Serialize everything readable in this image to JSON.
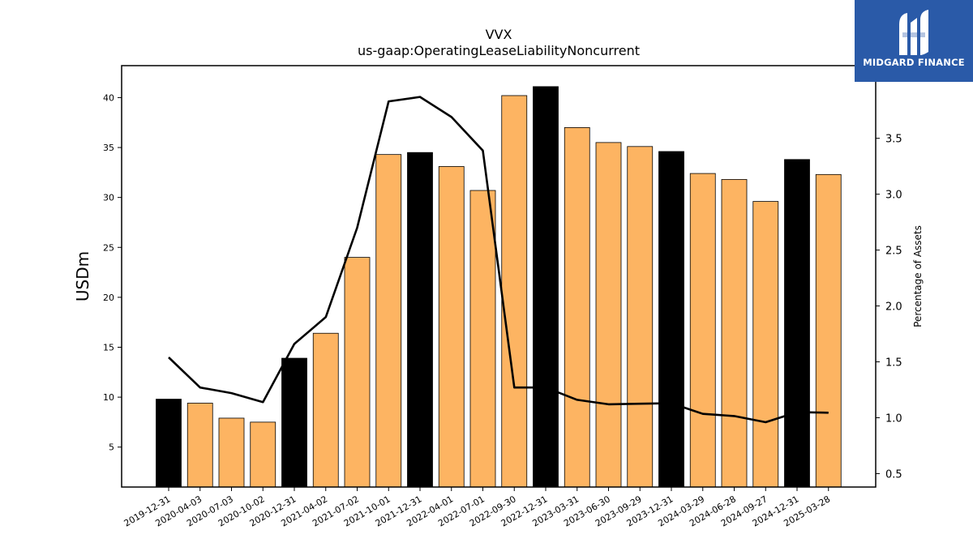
{
  "chart_data": {
    "type": "bar",
    "title": "VVX",
    "subtitle": "us-gaap:OperatingLeaseLiabilityNoncurrent",
    "ylabel": "USDm",
    "y2label": "Percentage of Assets",
    "categories": [
      "2019-12-31",
      "2020-04-03",
      "2020-07-03",
      "2020-10-02",
      "2020-12-31",
      "2021-04-02",
      "2021-07-02",
      "2021-10-01",
      "2021-12-31",
      "2022-04-01",
      "2022-07-01",
      "2022-09-30",
      "2022-12-31",
      "2023-03-31",
      "2023-06-30",
      "2023-09-29",
      "2023-12-31",
      "2024-03-29",
      "2024-06-28",
      "2024-09-27",
      "2024-12-31",
      "2025-03-28"
    ],
    "series": [
      {
        "type": "bar",
        "values": [
          9.8,
          9.4,
          7.9,
          7.5,
          13.9,
          16.4,
          24.0,
          34.3,
          34.5,
          33.1,
          30.7,
          40.2,
          41.1,
          37.0,
          35.5,
          35.1,
          34.6,
          32.4,
          31.8,
          29.6,
          33.8,
          32.3
        ],
        "colors": [
          "#000000",
          "#fdb462",
          "#fdb462",
          "#fdb462",
          "#000000",
          "#fdb462",
          "#fdb462",
          "#fdb462",
          "#000000",
          "#fdb462",
          "#fdb462",
          "#fdb462",
          "#000000",
          "#fdb462",
          "#fdb462",
          "#fdb462",
          "#000000",
          "#fdb462",
          "#fdb462",
          "#fdb462",
          "#000000",
          "#fdb462"
        ]
      },
      {
        "type": "line",
        "axis": "right",
        "values": [
          1.54,
          1.27,
          1.22,
          1.14,
          1.66,
          1.9,
          2.7,
          3.83,
          3.87,
          3.69,
          3.39,
          1.27,
          1.27,
          1.16,
          1.12,
          1.125,
          1.13,
          1.035,
          1.015,
          0.96,
          1.05,
          1.045
        ]
      }
    ],
    "ylim": [
      1.0,
      43.2
    ],
    "y2lim": [
      0.38,
      4.15
    ],
    "yticks": [
      5,
      10,
      15,
      20,
      25,
      30,
      35,
      40
    ],
    "y2ticks": [
      "0.5",
      "1.0",
      "1.5",
      "2.0",
      "2.5",
      "3.0",
      "3.5"
    ],
    "colors": {
      "bar_primary": "#fdb462",
      "bar_highlight": "#000000",
      "line": "#000000"
    },
    "grid": false
  },
  "logo": {
    "text": "MIDGARD FINANCE",
    "background": "#2a5aa8",
    "color": "#ffffff"
  }
}
